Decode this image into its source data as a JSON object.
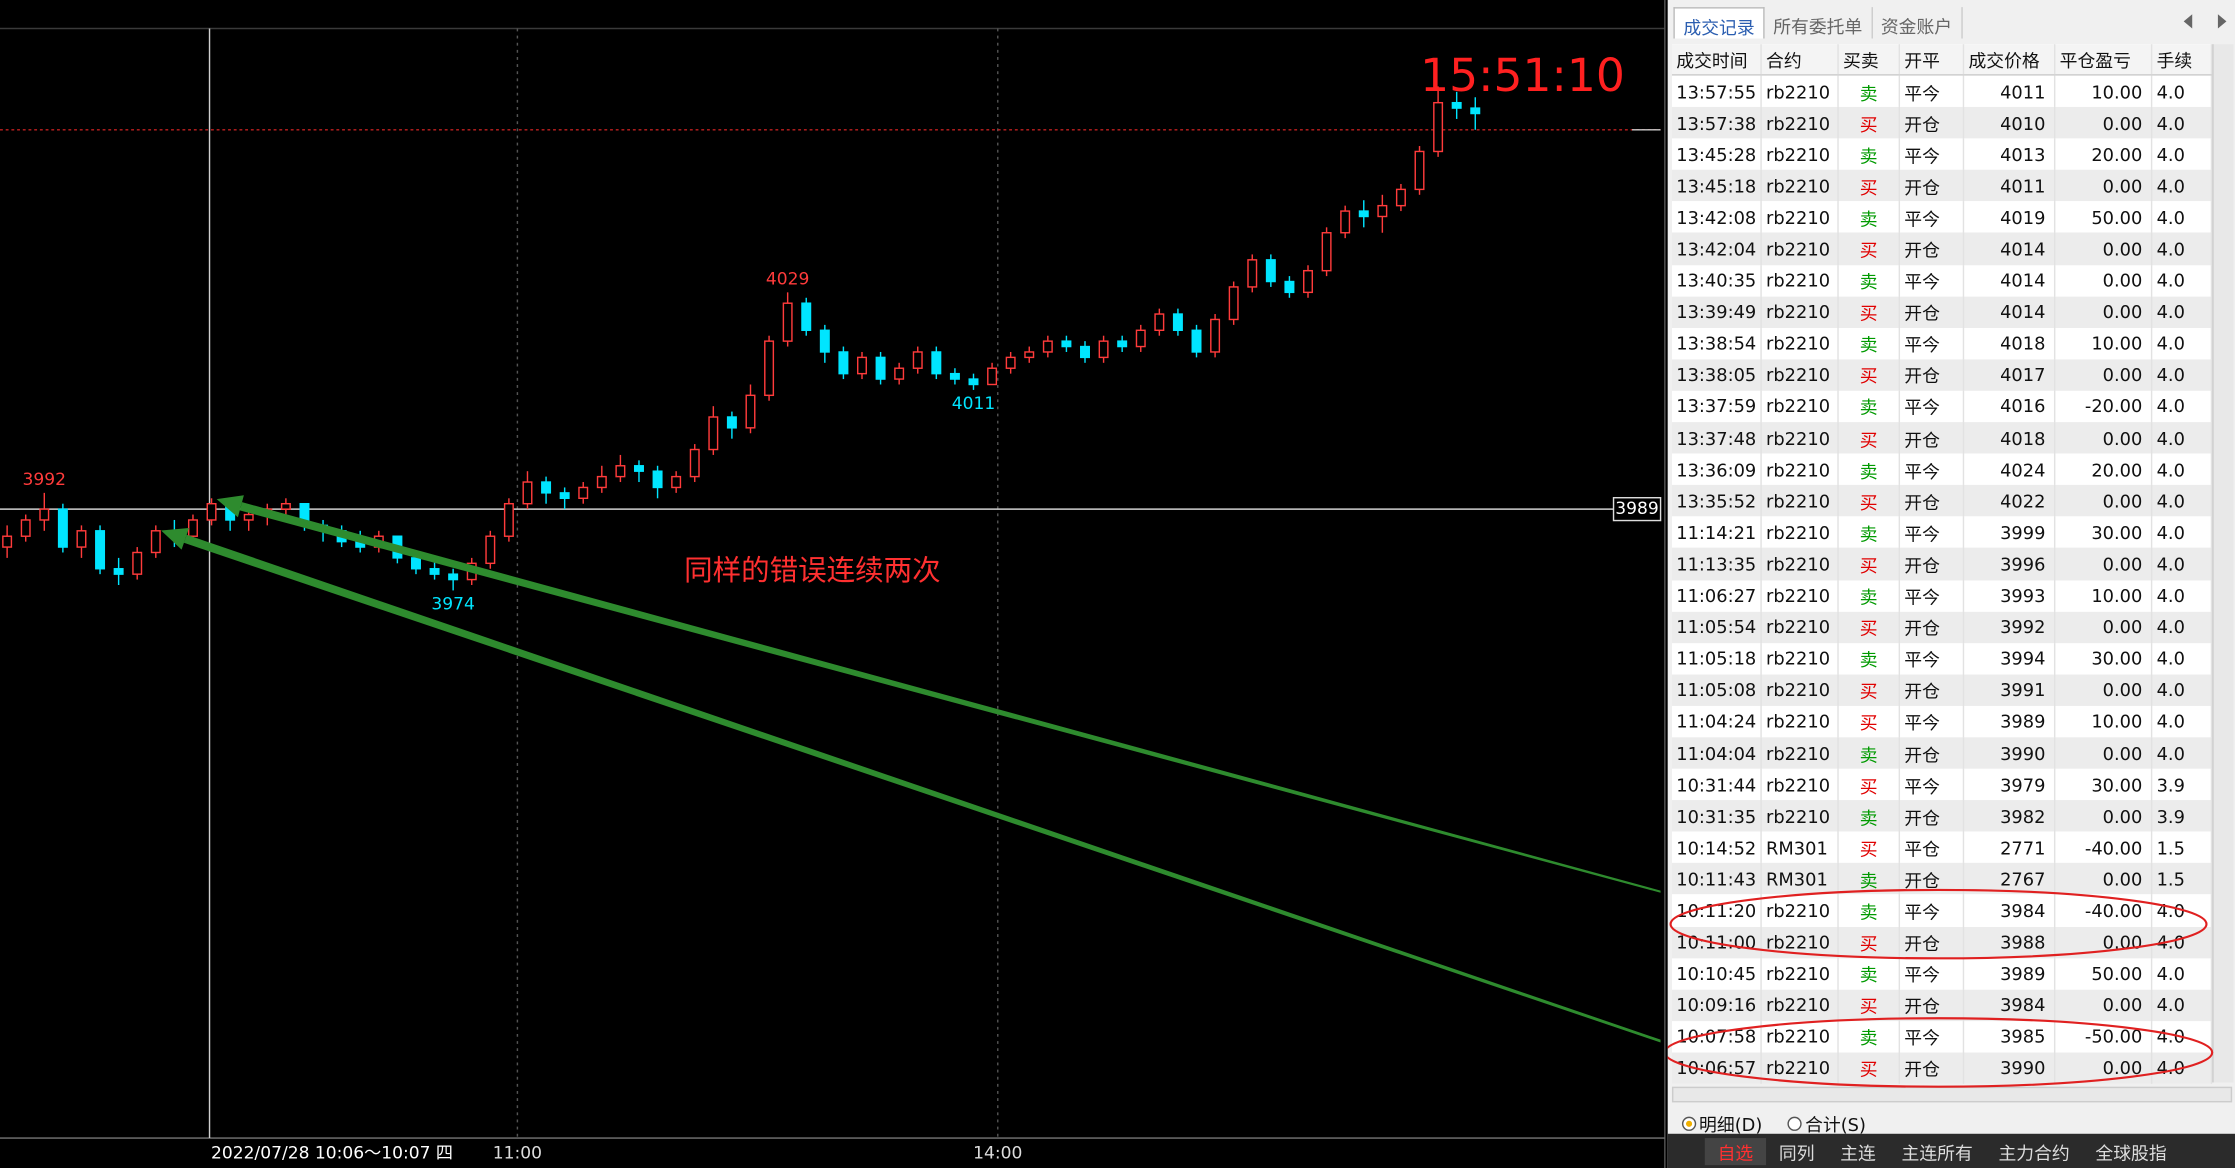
{
  "chart": {
    "type": "candlestick",
    "up_color": "#ff3b3b",
    "down_color": "#00e5ff",
    "candles": [
      [
        3982,
        3986,
        3980,
        3984
      ],
      [
        3984,
        3988,
        3983,
        3987
      ],
      [
        3987,
        3992,
        3985,
        3989
      ],
      [
        3989,
        3990,
        3981,
        3982
      ],
      [
        3982,
        3986,
        3980,
        3985
      ],
      [
        3985,
        3986,
        3977,
        3978
      ],
      [
        3978,
        3980,
        3975,
        3977
      ],
      [
        3977,
        3982,
        3976,
        3981
      ],
      [
        3981,
        3986,
        3980,
        3985
      ],
      [
        3985,
        3987,
        3982,
        3984
      ],
      [
        3984,
        3988,
        3983,
        3987
      ],
      [
        3987,
        3991,
        3986,
        3990
      ],
      [
        3990,
        3991,
        3985,
        3987
      ],
      [
        3987,
        3989,
        3985,
        3988
      ],
      [
        3988,
        3990,
        3986,
        3989
      ],
      [
        3989,
        3991,
        3987,
        3990
      ],
      [
        3990,
        3990,
        3985,
        3986
      ],
      [
        3986,
        3987,
        3983,
        3985
      ],
      [
        3985,
        3986,
        3982,
        3983
      ],
      [
        3983,
        3985,
        3981,
        3982
      ],
      [
        3982,
        3985,
        3981,
        3984
      ],
      [
        3984,
        3984,
        3979,
        3980
      ],
      [
        3980,
        3981,
        3977,
        3978
      ],
      [
        3978,
        3980,
        3976,
        3977
      ],
      [
        3977,
        3978,
        3974,
        3976
      ],
      [
        3976,
        3980,
        3975,
        3979
      ],
      [
        3979,
        3985,
        3978,
        3984
      ],
      [
        3984,
        3991,
        3983,
        3990
      ],
      [
        3990,
        3996,
        3989,
        3994
      ],
      [
        3994,
        3995,
        3990,
        3992
      ],
      [
        3992,
        3993,
        3989,
        3991
      ],
      [
        3991,
        3994,
        3990,
        3993
      ],
      [
        3993,
        3997,
        3992,
        3995
      ],
      [
        3995,
        3999,
        3994,
        3997
      ],
      [
        3997,
        3998,
        3994,
        3996
      ],
      [
        3996,
        3997,
        3991,
        3993
      ],
      [
        3993,
        3996,
        3992,
        3995
      ],
      [
        3995,
        4001,
        3994,
        4000
      ],
      [
        4000,
        4008,
        3999,
        4006
      ],
      [
        4006,
        4007,
        4002,
        4004
      ],
      [
        4004,
        4012,
        4003,
        4010
      ],
      [
        4010,
        4021,
        4009,
        4020
      ],
      [
        4020,
        4029,
        4019,
        4027
      ],
      [
        4027,
        4028,
        4021,
        4022
      ],
      [
        4022,
        4023,
        4016,
        4018
      ],
      [
        4018,
        4019,
        4013,
        4014
      ],
      [
        4014,
        4018,
        4013,
        4017
      ],
      [
        4017,
        4018,
        4012,
        4013
      ],
      [
        4013,
        4016,
        4012,
        4015
      ],
      [
        4015,
        4019,
        4014,
        4018
      ],
      [
        4018,
        4019,
        4013,
        4014
      ],
      [
        4014,
        4015,
        4012,
        4013
      ],
      [
        4013,
        4014,
        4011,
        4012
      ],
      [
        4012,
        4016,
        4012,
        4015
      ],
      [
        4015,
        4018,
        4014,
        4017
      ],
      [
        4017,
        4019,
        4016,
        4018
      ],
      [
        4018,
        4021,
        4017,
        4020
      ],
      [
        4020,
        4021,
        4018,
        4019
      ],
      [
        4019,
        4020,
        4016,
        4017
      ],
      [
        4017,
        4021,
        4016,
        4020
      ],
      [
        4020,
        4021,
        4018,
        4019
      ],
      [
        4019,
        4023,
        4018,
        4022
      ],
      [
        4022,
        4026,
        4021,
        4025
      ],
      [
        4025,
        4026,
        4021,
        4022
      ],
      [
        4022,
        4023,
        4017,
        4018
      ],
      [
        4018,
        4025,
        4017,
        4024
      ],
      [
        4024,
        4031,
        4023,
        4030
      ],
      [
        4030,
        4036,
        4029,
        4035
      ],
      [
        4035,
        4036,
        4030,
        4031
      ],
      [
        4031,
        4032,
        4028,
        4029
      ],
      [
        4029,
        4034,
        4028,
        4033
      ],
      [
        4033,
        4041,
        4032,
        4040
      ],
      [
        4040,
        4045,
        4039,
        4044
      ],
      [
        4044,
        4046,
        4041,
        4043
      ],
      [
        4043,
        4047,
        4040,
        4045
      ],
      [
        4045,
        4049,
        4044,
        4048
      ],
      [
        4048,
        4056,
        4047,
        4055
      ],
      [
        4055,
        4067,
        4054,
        4064
      ],
      [
        4064,
        4066,
        4061,
        4063
      ],
      [
        4063,
        4065,
        4059,
        4062
      ]
    ],
    "price_labels": [
      {
        "value": 3992,
        "at": "high",
        "color": "#ff3b3b"
      },
      {
        "value": 4029,
        "at": "high",
        "color": "#ff3b3b"
      },
      {
        "value": 3974,
        "at": "low",
        "color": "#00e5ff"
      },
      {
        "value": 4011,
        "at": "low",
        "color": "#00e5ff"
      }
    ],
    "reference_line": 4059,
    "crosshair": {
      "price": 3989,
      "time_label": "2022/07/28 10:06～10:07 四"
    },
    "time_labels": [
      "11:00",
      "14:00"
    ],
    "clock": "15:51:10",
    "annotation": "同样的错误连续两次"
  },
  "panel": {
    "tabs": [
      "成交记录",
      "所有委托单",
      "资金账户"
    ],
    "columns": [
      "成交时间",
      "合约",
      "买卖",
      "开平",
      "成交价格",
      "平仓盈亏",
      "手续"
    ],
    "side_colors": {
      "买": "#e00000",
      "卖": "#009a00"
    },
    "rows": [
      [
        "13:57:55",
        "rb2210",
        "卖",
        "平今",
        "4011",
        "10.00",
        "4.0"
      ],
      [
        "13:57:38",
        "rb2210",
        "买",
        "开仓",
        "4010",
        "0.00",
        "4.0"
      ],
      [
        "13:45:28",
        "rb2210",
        "卖",
        "平今",
        "4013",
        "20.00",
        "4.0"
      ],
      [
        "13:45:18",
        "rb2210",
        "买",
        "开仓",
        "4011",
        "0.00",
        "4.0"
      ],
      [
        "13:42:08",
        "rb2210",
        "卖",
        "平今",
        "4019",
        "50.00",
        "4.0"
      ],
      [
        "13:42:04",
        "rb2210",
        "买",
        "开仓",
        "4014",
        "0.00",
        "4.0"
      ],
      [
        "13:40:35",
        "rb2210",
        "卖",
        "平今",
        "4014",
        "0.00",
        "4.0"
      ],
      [
        "13:39:49",
        "rb2210",
        "买",
        "开仓",
        "4014",
        "0.00",
        "4.0"
      ],
      [
        "13:38:54",
        "rb2210",
        "卖",
        "平今",
        "4018",
        "10.00",
        "4.0"
      ],
      [
        "13:38:05",
        "rb2210",
        "买",
        "开仓",
        "4017",
        "0.00",
        "4.0"
      ],
      [
        "13:37:59",
        "rb2210",
        "卖",
        "平今",
        "4016",
        "-20.00",
        "4.0"
      ],
      [
        "13:37:48",
        "rb2210",
        "买",
        "开仓",
        "4018",
        "0.00",
        "4.0"
      ],
      [
        "13:36:09",
        "rb2210",
        "卖",
        "平今",
        "4024",
        "20.00",
        "4.0"
      ],
      [
        "13:35:52",
        "rb2210",
        "买",
        "开仓",
        "4022",
        "0.00",
        "4.0"
      ],
      [
        "11:14:21",
        "rb2210",
        "卖",
        "平今",
        "3999",
        "30.00",
        "4.0"
      ],
      [
        "11:13:35",
        "rb2210",
        "买",
        "开仓",
        "3996",
        "0.00",
        "4.0"
      ],
      [
        "11:06:27",
        "rb2210",
        "卖",
        "平今",
        "3993",
        "10.00",
        "4.0"
      ],
      [
        "11:05:54",
        "rb2210",
        "买",
        "开仓",
        "3992",
        "0.00",
        "4.0"
      ],
      [
        "11:05:18",
        "rb2210",
        "卖",
        "平今",
        "3994",
        "30.00",
        "4.0"
      ],
      [
        "11:05:08",
        "rb2210",
        "买",
        "开仓",
        "3991",
        "0.00",
        "4.0"
      ],
      [
        "11:04:24",
        "rb2210",
        "买",
        "平今",
        "3989",
        "10.00",
        "4.0"
      ],
      [
        "11:04:04",
        "rb2210",
        "卖",
        "开仓",
        "3990",
        "0.00",
        "4.0"
      ],
      [
        "10:31:44",
        "rb2210",
        "买",
        "平今",
        "3979",
        "30.00",
        "3.9"
      ],
      [
        "10:31:35",
        "rb2210",
        "卖",
        "开仓",
        "3982",
        "0.00",
        "3.9"
      ],
      [
        "10:14:52",
        "RM301",
        "买",
        "平仓",
        "2771",
        "-40.00",
        "1.5"
      ],
      [
        "10:11:43",
        "RM301",
        "卖",
        "开仓",
        "2767",
        "0.00",
        "1.5"
      ],
      [
        "10:11:20",
        "rb2210",
        "卖",
        "平今",
        "3984",
        "-40.00",
        "4.0"
      ],
      [
        "10:11:00",
        "rb2210",
        "买",
        "开仓",
        "3988",
        "0.00",
        "4.0"
      ],
      [
        "10:10:45",
        "rb2210",
        "卖",
        "平今",
        "3989",
        "50.00",
        "4.0"
      ],
      [
        "10:09:16",
        "rb2210",
        "买",
        "开仓",
        "3984",
        "0.00",
        "4.0"
      ],
      [
        "10:07:58",
        "rb2210",
        "卖",
        "平今",
        "3985",
        "-50.00",
        "4.0"
      ],
      [
        "10:06:57",
        "rb2210",
        "买",
        "开仓",
        "3990",
        "0.00",
        "4.0"
      ]
    ],
    "radio": [
      "明细(D)",
      "合计(S)"
    ],
    "bottom_tabs": [
      "自选",
      "同列",
      "主连",
      "主连所有",
      "主力合约",
      "全球股指"
    ]
  }
}
